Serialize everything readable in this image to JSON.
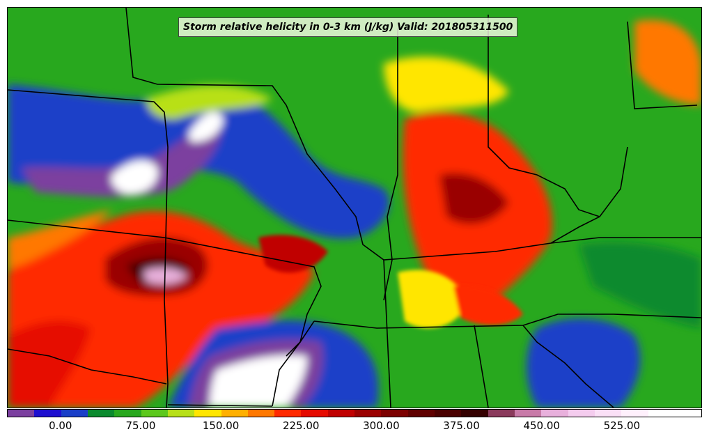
{
  "title": "Storm relative helicity in 0-3 km (J/kg) Valid: 201805311500",
  "colorbar": {
    "min": -50,
    "max": 600,
    "step": 25,
    "colors": [
      "#7b3f9f",
      "#1e0fd0",
      "#1a3fc8",
      "#0a8a2e",
      "#28a81e",
      "#5cc81c",
      "#b8e018",
      "#ffe600",
      "#ffb000",
      "#ff7800",
      "#ff2a00",
      "#e60a00",
      "#c00000",
      "#9a0000",
      "#7c0000",
      "#600000",
      "#4a0000",
      "#340000",
      "#8a3a5c",
      "#c87aa8",
      "#e8b0dc",
      "#f4ccee",
      "#fae0f6",
      "#fff0fc",
      "#ffffff",
      "#ffffff"
    ],
    "tick_labels": [
      "0.00",
      "75.00",
      "150.00",
      "225.00",
      "300.00",
      "375.00",
      "450.00",
      "525.00"
    ],
    "tick_values": [
      0,
      75,
      150,
      225,
      300,
      375,
      450,
      525
    ]
  },
  "legend_colors": {
    "background": "#28a81e",
    "border": "#000000"
  }
}
